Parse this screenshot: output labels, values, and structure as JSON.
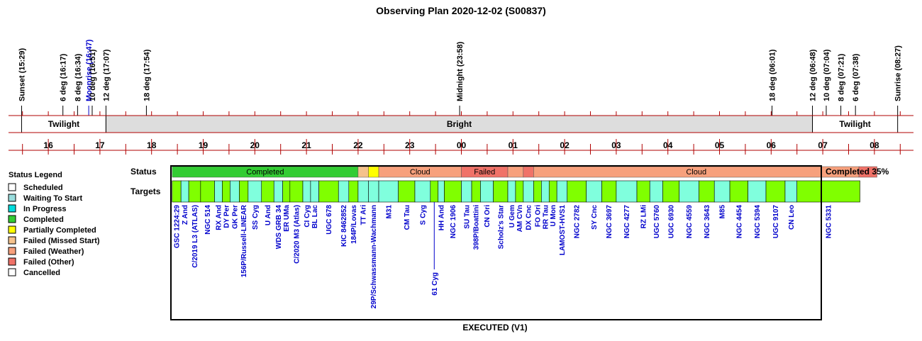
{
  "title": "Observing Plan 2020-12-02 (S00837)",
  "footer": "EXECUTED (V1)",
  "completion": "Completed 35%",
  "row_labels": {
    "status": "Status",
    "targets": "Targets"
  },
  "colors": {
    "completed": "#33cc33",
    "failed_missed_start": "#f5c28c",
    "failed_weather": "#f7a07c",
    "failed_other": "#f07268",
    "partially_completed": "#ffff00",
    "target_a": "#80ff00",
    "target_b": "#80ffdd",
    "twilight_band": "#ffffff",
    "bright_band": "#dddddd",
    "grid": "#b00000",
    "label_blue": "#0000cc"
  },
  "legend": {
    "title": "Status Legend",
    "items": [
      {
        "label": "Scheduled",
        "color": "#ffffff"
      },
      {
        "label": "Waiting To Start",
        "color": "#99dddd"
      },
      {
        "label": "In Progress",
        "color": "#00dddd"
      },
      {
        "label": "Completed",
        "color": "#33cc33"
      },
      {
        "label": "Partially Completed",
        "color": "#ffff00"
      },
      {
        "label": "Failed (Missed Start)",
        "color": "#f5c28c"
      },
      {
        "label": "Failed (Weather)",
        "color": "#f7a07c"
      },
      {
        "label": "Failed (Other)",
        "color": "#f07268"
      },
      {
        "label": "Cancelled",
        "color": "#ffffff"
      }
    ]
  },
  "chart_data": {
    "type": "timeline",
    "x_unit": "hour (local time, continuing past midnight)",
    "x_range": [
      15.3,
      32.6
    ],
    "hour_ticks": [
      {
        "label": "16",
        "t": 16
      },
      {
        "label": "17",
        "t": 17
      },
      {
        "label": "18",
        "t": 18
      },
      {
        "label": "19",
        "t": 19
      },
      {
        "label": "20",
        "t": 20
      },
      {
        "label": "21",
        "t": 21
      },
      {
        "label": "22",
        "t": 22
      },
      {
        "label": "23",
        "t": 23
      },
      {
        "label": "00",
        "t": 24
      },
      {
        "label": "01",
        "t": 25
      },
      {
        "label": "02",
        "t": 26
      },
      {
        "label": "03",
        "t": 27
      },
      {
        "label": "04",
        "t": 28
      },
      {
        "label": "05",
        "t": 29
      },
      {
        "label": "06",
        "t": 30
      },
      {
        "label": "07",
        "t": 31
      },
      {
        "label": "08",
        "t": 32
      }
    ],
    "events": [
      {
        "label": "Sunset (15:29)",
        "t": 15.483,
        "color": "#000000"
      },
      {
        "label": "6 deg (16:17)",
        "t": 16.283,
        "color": "#000000"
      },
      {
        "label": "8 deg (16:34)",
        "t": 16.567,
        "color": "#000000"
      },
      {
        "label": "Moonrise (16:47)",
        "t": 16.783,
        "color": "#0000cc"
      },
      {
        "label": "10 deg (16:51)",
        "t": 16.85,
        "color": "#000000"
      },
      {
        "label": "12 deg (17:07)",
        "t": 17.117,
        "color": "#000000"
      },
      {
        "label": "18 deg (17:54)",
        "t": 17.9,
        "color": "#000000"
      },
      {
        "label": "Midnight (23:58)",
        "t": 23.967,
        "color": "#000000"
      },
      {
        "label": "18 deg (06:01)",
        "t": 30.017,
        "color": "#000000"
      },
      {
        "label": "12 deg (06:48)",
        "t": 30.8,
        "color": "#000000"
      },
      {
        "label": "10 deg (07:04)",
        "t": 31.067,
        "color": "#000000"
      },
      {
        "label": "8 deg (07:21)",
        "t": 31.35,
        "color": "#000000"
      },
      {
        "label": "6 deg (07:38)",
        "t": 31.633,
        "color": "#000000"
      },
      {
        "label": "Sunrise (08:27)",
        "t": 32.45,
        "color": "#000000"
      }
    ],
    "bands": [
      {
        "label": "Twilight",
        "start": 15.483,
        "end": 17.117,
        "kind": "twilight"
      },
      {
        "label": "Bright",
        "start": 17.117,
        "end": 30.8,
        "kind": "bright"
      },
      {
        "label": "Twilight",
        "start": 30.8,
        "end": 32.45,
        "kind": "twilight"
      }
    ],
    "status_segments": [
      {
        "label": "Completed",
        "start": 18.4,
        "end": 22.0,
        "status": "completed"
      },
      {
        "label": "",
        "start": 22.0,
        "end": 22.2,
        "status": "failed_missed_start"
      },
      {
        "label": "",
        "start": 22.2,
        "end": 22.4,
        "status": "partially_completed"
      },
      {
        "label": "Cloud",
        "start": 22.4,
        "end": 24.0,
        "status": "failed_weather"
      },
      {
        "label": "Failed",
        "start": 24.0,
        "end": 24.9,
        "status": "failed_other"
      },
      {
        "label": "",
        "start": 24.9,
        "end": 25.2,
        "status": "failed_weather"
      },
      {
        "label": "",
        "start": 25.2,
        "end": 25.4,
        "status": "failed_other"
      },
      {
        "label": "Cloud",
        "start": 25.4,
        "end": 31.7,
        "status": "failed_weather"
      },
      {
        "label": "",
        "start": 31.7,
        "end": 32.05,
        "status": "failed_other"
      }
    ],
    "targets": [
      {
        "name": "GSC 1224:29",
        "start": 18.4,
        "end": 18.57,
        "c": "a"
      },
      {
        "name": "Z And",
        "start": 18.57,
        "end": 18.72,
        "c": "b"
      },
      {
        "name": "C/2019 L3 (ATLAS)",
        "start": 18.72,
        "end": 18.95,
        "c": "a"
      },
      {
        "name": "NGC 514",
        "start": 18.95,
        "end": 19.22,
        "c": "a"
      },
      {
        "name": "RX And",
        "start": 19.22,
        "end": 19.37,
        "c": "b"
      },
      {
        "name": "DY Per",
        "start": 19.37,
        "end": 19.52,
        "c": "a"
      },
      {
        "name": "GK Per",
        "start": 19.52,
        "end": 19.7,
        "c": "b"
      },
      {
        "name": "156P/Russell-LINEAR",
        "start": 19.7,
        "end": 19.87,
        "c": "a"
      },
      {
        "name": "SS Cyg",
        "start": 19.87,
        "end": 20.13,
        "c": "b"
      },
      {
        "name": "U And",
        "start": 20.13,
        "end": 20.37,
        "c": "a"
      },
      {
        "name": "WDS GRB 34",
        "start": 20.37,
        "end": 20.54,
        "c": "b"
      },
      {
        "name": "ER UMa",
        "start": 20.54,
        "end": 20.68,
        "c": "a"
      },
      {
        "name": "C/2020 M3 (Atlas)",
        "start": 20.68,
        "end": 20.93,
        "c": "a"
      },
      {
        "name": "CI Cyg",
        "start": 20.93,
        "end": 21.08,
        "c": "b"
      },
      {
        "name": "BL Lac",
        "start": 21.08,
        "end": 21.24,
        "c": "b"
      },
      {
        "name": "UGC 678",
        "start": 21.24,
        "end": 21.62,
        "c": "a"
      },
      {
        "name": "KIC 8462852",
        "start": 21.62,
        "end": 21.82,
        "c": "b"
      },
      {
        "name": "184P/Lovas",
        "start": 21.82,
        "end": 22.0,
        "c": "a"
      },
      {
        "name": "TT Ari",
        "start": 22.0,
        "end": 22.2,
        "c": "b"
      },
      {
        "name": "29P/Schwassmann-Wachmann",
        "start": 22.2,
        "end": 22.4,
        "c": "b"
      },
      {
        "name": "M31",
        "start": 22.4,
        "end": 22.78,
        "c": "b"
      },
      {
        "name": "CM Tau",
        "start": 22.78,
        "end": 23.1,
        "c": "a"
      },
      {
        "name": "S Cyg",
        "start": 23.1,
        "end": 23.4,
        "c": "b"
      },
      {
        "name": "61 Cyg",
        "start": 23.4,
        "end": 23.55,
        "c": "a"
      },
      {
        "name": "HH And",
        "start": 23.55,
        "end": 23.67,
        "c": "b"
      },
      {
        "name": "NGC 1906",
        "start": 23.67,
        "end": 24.0,
        "c": "a"
      },
      {
        "name": "SU Tau",
        "start": 24.0,
        "end": 24.2,
        "c": "b"
      },
      {
        "name": "398P/Boattini",
        "start": 24.2,
        "end": 24.37,
        "c": "a"
      },
      {
        "name": "CN Ori",
        "start": 24.37,
        "end": 24.62,
        "c": "b"
      },
      {
        "name": "Scholz's Star",
        "start": 24.62,
        "end": 24.9,
        "c": "a"
      },
      {
        "name": "U Gem",
        "start": 24.9,
        "end": 25.05,
        "c": "b"
      },
      {
        "name": "AM CVn",
        "start": 25.05,
        "end": 25.2,
        "c": "a"
      },
      {
        "name": "DX Cnc",
        "start": 25.2,
        "end": 25.4,
        "c": "b"
      },
      {
        "name": "FO Ori",
        "start": 25.4,
        "end": 25.55,
        "c": "a"
      },
      {
        "name": "RR Tau",
        "start": 25.55,
        "end": 25.7,
        "c": "b"
      },
      {
        "name": "U Mon",
        "start": 25.7,
        "end": 25.85,
        "c": "a"
      },
      {
        "name": "LAMOST-HVS1",
        "start": 25.85,
        "end": 26.05,
        "c": "b"
      },
      {
        "name": "NGC 2782",
        "start": 26.05,
        "end": 26.42,
        "c": "a"
      },
      {
        "name": "SY Cnc",
        "start": 26.42,
        "end": 26.72,
        "c": "b"
      },
      {
        "name": "NGC 3697",
        "start": 26.72,
        "end": 27.0,
        "c": "a"
      },
      {
        "name": "NGC 4277",
        "start": 27.0,
        "end": 27.4,
        "c": "b"
      },
      {
        "name": "RZ LMi",
        "start": 27.4,
        "end": 27.65,
        "c": "a"
      },
      {
        "name": "UGC 5760",
        "start": 27.65,
        "end": 27.9,
        "c": "b"
      },
      {
        "name": "UGC 6930",
        "start": 27.9,
        "end": 28.22,
        "c": "a"
      },
      {
        "name": "NGC 4559",
        "start": 28.22,
        "end": 28.6,
        "c": "b"
      },
      {
        "name": "NGC 3643",
        "start": 28.6,
        "end": 28.9,
        "c": "a"
      },
      {
        "name": "M85",
        "start": 28.9,
        "end": 29.2,
        "c": "b"
      },
      {
        "name": "NGC 4454",
        "start": 29.2,
        "end": 29.55,
        "c": "a"
      },
      {
        "name": "NGC 5394",
        "start": 29.55,
        "end": 29.9,
        "c": "b"
      },
      {
        "name": "UGC 9107",
        "start": 29.9,
        "end": 30.27,
        "c": "a"
      },
      {
        "name": "CN Leo",
        "start": 30.27,
        "end": 30.5,
        "c": "b"
      },
      {
        "name": "NGC 5331",
        "start": 30.5,
        "end": 31.72,
        "c": "a"
      }
    ]
  }
}
